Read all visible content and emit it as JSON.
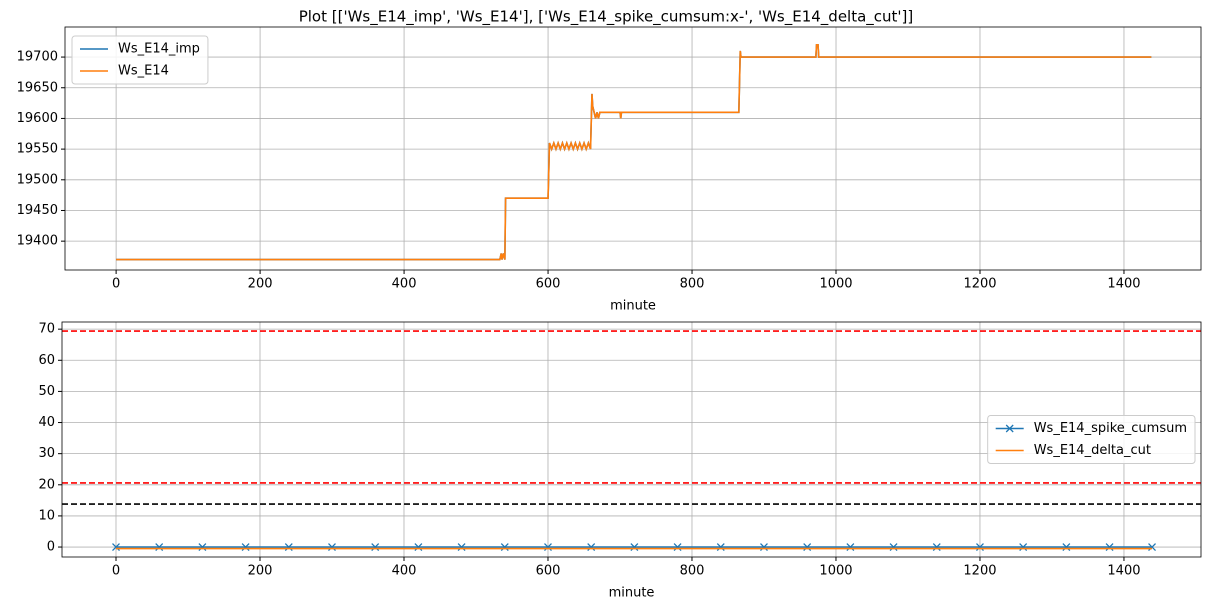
{
  "title": "Plot [['Ws_E14_imp', 'Ws_E14'], ['Ws_E14_spike_cumsum:x-', 'Ws_E14_delta_cut']]",
  "chart_data": [
    {
      "type": "line",
      "xlabel": "minute",
      "x": [
        0,
        296,
        299,
        533,
        535,
        536,
        538,
        540,
        541,
        599,
        600,
        602,
        605,
        608,
        611,
        614,
        617,
        620,
        623,
        626,
        629,
        632,
        635,
        638,
        641,
        644,
        647,
        650,
        653,
        656,
        659,
        661,
        662,
        664,
        666,
        668,
        670,
        672,
        675,
        700,
        701,
        702,
        775,
        778,
        864,
        865,
        867,
        868,
        970,
        972,
        973,
        975,
        976,
        1438
      ],
      "series": [
        {
          "name": "Ws_E14_imp",
          "color": "#1f77b4",
          "values": [
            19370,
            19370,
            19370,
            19370,
            19380,
            19370,
            19380,
            19370,
            19470,
            19470,
            19470,
            19560,
            19550,
            19560,
            19550,
            19560,
            19550,
            19560,
            19550,
            19560,
            19550,
            19560,
            19550,
            19560,
            19550,
            19560,
            19550,
            19560,
            19550,
            19560,
            19550,
            19640,
            19620,
            19610,
            19600,
            19610,
            19600,
            19610,
            19610,
            19610,
            19600,
            19610,
            19610,
            19610,
            19610,
            19610,
            19710,
            19700,
            19700,
            19700,
            19720,
            19720,
            19700,
            19700
          ]
        },
        {
          "name": "Ws_E14",
          "color": "#ff7f0e",
          "values": [
            19370,
            19370,
            19370,
            19370,
            19380,
            19370,
            19380,
            19370,
            19470,
            19470,
            19470,
            19560,
            19550,
            19560,
            19550,
            19560,
            19550,
            19560,
            19550,
            19560,
            19550,
            19560,
            19550,
            19560,
            19550,
            19560,
            19550,
            19560,
            19550,
            19560,
            19550,
            19640,
            19620,
            19610,
            19600,
            19610,
            19600,
            19610,
            19610,
            19610,
            19600,
            19610,
            19610,
            19610,
            19610,
            19610,
            19710,
            19700,
            19700,
            19700,
            19720,
            19720,
            19700,
            19700
          ]
        }
      ],
      "xlim": [
        -71,
        1507
      ],
      "xticks": [
        0,
        200,
        400,
        600,
        800,
        1000,
        1200,
        1400
      ],
      "ylim": [
        19353,
        19749
      ],
      "yticks": [
        19400,
        19450,
        19500,
        19550,
        19600,
        19650,
        19700
      ],
      "grid": true,
      "legend": "upper left"
    },
    {
      "type": "line",
      "xlabel": "minute",
      "x": [
        0,
        60,
        120,
        180,
        240,
        300,
        360,
        420,
        480,
        540,
        600,
        660,
        720,
        780,
        840,
        900,
        960,
        1020,
        1080,
        1140,
        1200,
        1260,
        1320,
        1380,
        1439
      ],
      "series": [
        {
          "name": "Ws_E14_spike_cumsum",
          "color": "#1f77b4",
          "marker": "x",
          "values": [
            0,
            0,
            0,
            0,
            0,
            0,
            0,
            0,
            0,
            0,
            0,
            0,
            0,
            0,
            0,
            0,
            0,
            0,
            0,
            0,
            0,
            0,
            0,
            0,
            0
          ]
        },
        {
          "name": "Ws_E14_delta_cut",
          "color": "#ff7f0e",
          "values": [
            -0.5,
            -0.5,
            -0.5,
            -0.5,
            -0.5,
            -0.5,
            -0.5,
            -0.5,
            -0.5,
            -0.5,
            -0.5,
            -0.5,
            -0.5,
            -0.5,
            -0.5,
            -0.5,
            -0.5,
            -0.5,
            -0.5,
            -0.5,
            -0.5,
            -0.5,
            -0.5,
            -0.5,
            -0.5
          ]
        }
      ],
      "hlines": [
        {
          "value": 69.4,
          "color": "#ff0000"
        },
        {
          "value": 20.6,
          "color": "#ff0000"
        },
        {
          "value": 13.8,
          "color": "#000000"
        }
      ],
      "xlim": [
        -75,
        1507
      ],
      "xticks": [
        0,
        200,
        400,
        600,
        800,
        1000,
        1200,
        1400
      ],
      "ylim": [
        -3.2,
        72.3
      ],
      "yticks": [
        0,
        10,
        20,
        30,
        40,
        50,
        60,
        70
      ],
      "grid": true,
      "legend": "center right"
    }
  ]
}
